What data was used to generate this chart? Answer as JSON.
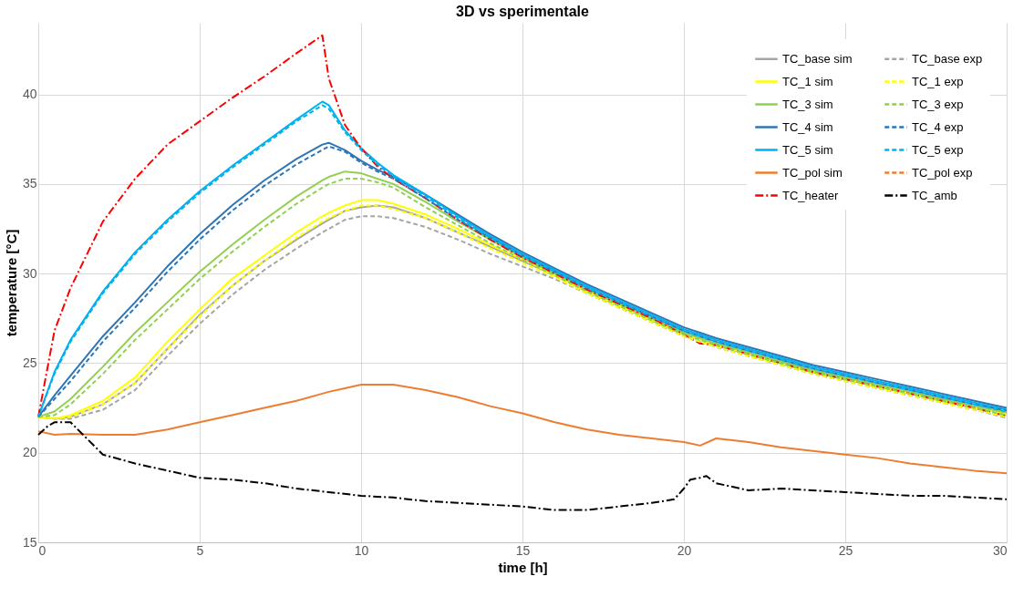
{
  "chart_data": {
    "type": "line",
    "title": "3D vs sperimentale",
    "xlabel": "time [h]",
    "ylabel": "temperature [°C]",
    "x": [
      0,
      0.5,
      1,
      2,
      3,
      4,
      5,
      6,
      7,
      8,
      8.8,
      9,
      9.5,
      10,
      10.5,
      11,
      12,
      13,
      14,
      15,
      16,
      17,
      18,
      19,
      20,
      20.5,
      21,
      22,
      23,
      24,
      25,
      26,
      27,
      28,
      29,
      30
    ],
    "xlim": [
      0,
      30
    ],
    "xticks": [
      0,
      5,
      10,
      15,
      20,
      25,
      30
    ],
    "ylim": [
      15,
      44
    ],
    "yticks": [
      15,
      20,
      25,
      30,
      35,
      40
    ],
    "grid": true,
    "legend": "top right",
    "series": [
      {
        "name": "TC_base sim",
        "color": "#a5a5a5",
        "line_style": "solid",
        "values": [
          22.0,
          21.9,
          22.0,
          22.7,
          23.9,
          25.8,
          27.7,
          29.3,
          30.7,
          31.9,
          32.8,
          33.0,
          33.5,
          33.7,
          33.8,
          33.7,
          33.1,
          32.3,
          31.5,
          30.7,
          29.9,
          29.0,
          28.2,
          27.4,
          26.6,
          26.3,
          26.0,
          25.5,
          25.0,
          24.5,
          24.1,
          23.7,
          23.3,
          22.9,
          22.5,
          22.2
        ]
      },
      {
        "name": "TC_1 sim",
        "color": "#ffff00",
        "line_style": "solid",
        "values": [
          22.0,
          21.9,
          22.1,
          22.9,
          24.2,
          26.2,
          28.0,
          29.7,
          31.0,
          32.3,
          33.2,
          33.4,
          33.8,
          34.1,
          34.1,
          33.9,
          33.3,
          32.5,
          31.6,
          30.8,
          29.9,
          29.0,
          28.2,
          27.4,
          26.6,
          26.3,
          26.0,
          25.5,
          25.0,
          24.5,
          24.1,
          23.7,
          23.3,
          22.9,
          22.5,
          22.15
        ]
      },
      {
        "name": "TC_3 sim",
        "color": "#92d050",
        "line_style": "solid",
        "values": [
          22.0,
          22.3,
          23.0,
          24.8,
          26.7,
          28.4,
          30.1,
          31.6,
          33.0,
          34.3,
          35.2,
          35.4,
          35.7,
          35.6,
          35.3,
          35.0,
          34.0,
          32.9,
          31.9,
          30.9,
          30.0,
          29.1,
          28.3,
          27.5,
          26.7,
          26.4,
          26.1,
          25.6,
          25.1,
          24.6,
          24.2,
          23.8,
          23.4,
          23.0,
          22.6,
          22.25
        ]
      },
      {
        "name": "TC_4 sim",
        "color": "#2e75b6",
        "line_style": "solid",
        "values": [
          22.0,
          23.2,
          24.3,
          26.5,
          28.4,
          30.4,
          32.2,
          33.8,
          35.2,
          36.4,
          37.2,
          37.3,
          36.9,
          36.3,
          35.8,
          35.4,
          34.4,
          33.3,
          32.2,
          31.2,
          30.3,
          29.4,
          28.6,
          27.8,
          27.0,
          26.7,
          26.4,
          25.9,
          25.4,
          24.9,
          24.5,
          24.1,
          23.7,
          23.3,
          22.9,
          22.5
        ]
      },
      {
        "name": "TC_5 sim",
        "color": "#00b0f0",
        "line_style": "solid",
        "values": [
          22.0,
          24.5,
          26.3,
          29.0,
          31.2,
          33.0,
          34.6,
          36.0,
          37.3,
          38.6,
          39.6,
          39.4,
          38.0,
          37.0,
          36.2,
          35.5,
          34.4,
          33.2,
          32.1,
          31.1,
          30.2,
          29.3,
          28.5,
          27.7,
          26.9,
          26.6,
          26.3,
          25.8,
          25.3,
          24.8,
          24.4,
          24.0,
          23.6,
          23.2,
          22.8,
          22.4
        ]
      },
      {
        "name": "TC_pol sim",
        "color": "#ed7d31",
        "line_style": "solid",
        "values": [
          21.2,
          21.0,
          21.05,
          21.0,
          21.0,
          21.3,
          21.7,
          22.1,
          22.5,
          22.9,
          23.3,
          23.4,
          23.6,
          23.8,
          23.8,
          23.8,
          23.5,
          23.1,
          22.6,
          22.2,
          21.7,
          21.3,
          21.0,
          20.8,
          20.6,
          20.4,
          20.8,
          20.6,
          20.3,
          20.1,
          19.9,
          19.7,
          19.4,
          19.2,
          19.0,
          18.85
        ]
      },
      {
        "name": "TC_heater",
        "color": "#ff0000",
        "line_style": "dashdot",
        "values": [
          22.0,
          26.8,
          29.2,
          32.9,
          35.3,
          37.2,
          38.5,
          39.8,
          41.0,
          42.3,
          43.3,
          40.9,
          38.3,
          37.0,
          36.0,
          35.3,
          34.2,
          33.0,
          31.9,
          30.9,
          30.0,
          29.1,
          28.3,
          27.5,
          26.6,
          26.1,
          26.0,
          25.5,
          25.0,
          24.5,
          24.1,
          23.7,
          23.3,
          22.9,
          22.5,
          22.05
        ]
      },
      {
        "name": "TC_base exp",
        "color": "#a5a5a5",
        "line_style": "dashed",
        "values": [
          22.0,
          21.9,
          21.9,
          22.4,
          23.5,
          25.4,
          27.2,
          28.8,
          30.2,
          31.4,
          32.3,
          32.5,
          33.0,
          33.2,
          33.2,
          33.1,
          32.6,
          31.9,
          31.1,
          30.4,
          29.7,
          28.9,
          28.1,
          27.3,
          26.5,
          26.2,
          25.9,
          25.4,
          24.9,
          24.4,
          24.0,
          23.6,
          23.2,
          22.8,
          22.4,
          21.95
        ]
      },
      {
        "name": "TC_1 exp",
        "color": "#ffff00",
        "line_style": "dashed",
        "values": [
          22.0,
          21.9,
          22.0,
          22.7,
          23.9,
          25.8,
          27.6,
          29.3,
          30.7,
          32.0,
          32.9,
          33.1,
          33.5,
          33.8,
          33.8,
          33.6,
          33.1,
          32.3,
          31.4,
          30.6,
          29.8,
          28.9,
          28.1,
          27.3,
          26.5,
          26.2,
          25.9,
          25.4,
          24.9,
          24.4,
          24.0,
          23.6,
          23.2,
          22.8,
          22.4,
          22.0
        ]
      },
      {
        "name": "TC_3 exp",
        "color": "#92d050",
        "line_style": "dashed",
        "values": [
          22.0,
          22.1,
          22.7,
          24.4,
          26.3,
          28.0,
          29.7,
          31.2,
          32.6,
          33.9,
          34.8,
          35.0,
          35.3,
          35.3,
          35.1,
          34.8,
          33.7,
          32.7,
          31.7,
          30.8,
          29.9,
          29.0,
          28.2,
          27.4,
          26.6,
          26.3,
          26.0,
          25.5,
          25.0,
          24.5,
          24.1,
          23.7,
          23.3,
          22.9,
          22.5,
          22.1
        ]
      },
      {
        "name": "TC_4 exp",
        "color": "#2e75b6",
        "line_style": "dashed",
        "values": [
          22.0,
          23.0,
          24.0,
          26.2,
          28.1,
          30.1,
          31.9,
          33.5,
          34.9,
          36.1,
          36.9,
          37.1,
          36.8,
          36.2,
          35.7,
          35.3,
          34.2,
          33.0,
          32.0,
          31.0,
          30.1,
          29.2,
          28.4,
          27.6,
          26.8,
          26.5,
          26.2,
          25.7,
          25.2,
          24.7,
          24.3,
          23.9,
          23.5,
          23.1,
          22.7,
          22.35
        ]
      },
      {
        "name": "TC_5 exp",
        "color": "#00b0f0",
        "line_style": "dashed",
        "values": [
          22.0,
          24.4,
          26.2,
          28.9,
          31.1,
          32.9,
          34.5,
          35.9,
          37.2,
          38.5,
          39.4,
          39.2,
          37.9,
          36.9,
          36.1,
          35.4,
          34.3,
          33.1,
          32.0,
          31.0,
          30.1,
          29.2,
          28.4,
          27.6,
          26.8,
          26.5,
          26.2,
          25.7,
          25.2,
          24.7,
          24.3,
          23.9,
          23.5,
          23.1,
          22.7,
          22.3
        ]
      },
      {
        "name": "TC_pol exp",
        "color": "#ed7d31",
        "line_style": "dashed",
        "values": [
          null,
          null,
          null,
          null,
          null,
          null,
          null,
          null,
          null,
          null,
          null,
          null,
          null,
          null,
          null,
          null,
          null,
          null,
          null,
          null,
          null,
          null,
          null,
          null,
          null,
          null,
          null,
          null,
          null,
          null,
          null,
          null,
          null,
          null,
          null,
          null
        ]
      },
      {
        "name": "TC_amb",
        "color": "#000000",
        "line_style": "dashdot",
        "x": [
          0,
          0.3,
          0.5,
          1,
          1.5,
          2,
          3,
          4,
          5,
          6,
          7,
          8,
          9,
          10,
          11,
          12,
          13,
          14,
          15,
          16,
          17,
          18,
          19,
          19.7,
          20,
          20.2,
          20.5,
          20.7,
          21,
          22,
          23,
          24,
          25,
          26,
          27,
          28,
          29,
          30
        ],
        "values": [
          21.0,
          21.5,
          21.7,
          21.7,
          20.8,
          19.9,
          19.4,
          19.0,
          18.6,
          18.5,
          18.3,
          18.0,
          17.8,
          17.6,
          17.5,
          17.3,
          17.2,
          17.1,
          17.0,
          16.8,
          16.8,
          17.0,
          17.2,
          17.4,
          18.0,
          18.5,
          18.6,
          18.7,
          18.3,
          17.9,
          18.0,
          17.9,
          17.8,
          17.7,
          17.6,
          17.6,
          17.5,
          17.4
        ]
      }
    ]
  }
}
